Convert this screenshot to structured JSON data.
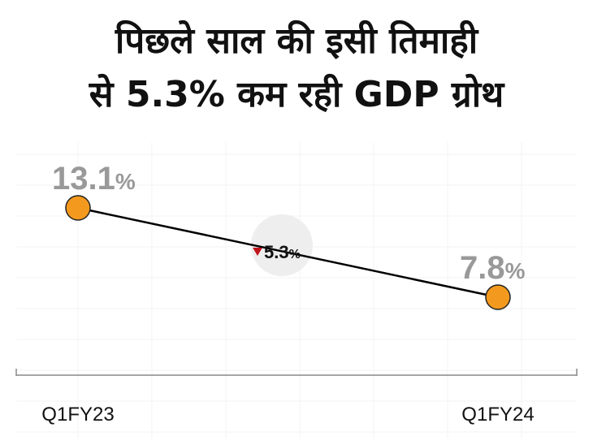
{
  "title": {
    "line1": "पिछले साल की इसी तिमाही",
    "line2": "से 5.3% कम रही GDP ग्रोथ"
  },
  "chart_data": {
    "type": "line",
    "categories": [
      "Q1FY23",
      "Q1FY24"
    ],
    "values": [
      13.1,
      7.8
    ],
    "value_labels": [
      "13.1",
      "7.8"
    ],
    "unit": "%",
    "annotation": {
      "text": "5.3",
      "unit": "%",
      "direction": "down",
      "arrow_color": "#c0141c"
    },
    "grid": true,
    "colors": {
      "marker": "#f39a1e",
      "line": "#000000",
      "value_label": "#999999",
      "badge": "#eeeeee"
    }
  }
}
